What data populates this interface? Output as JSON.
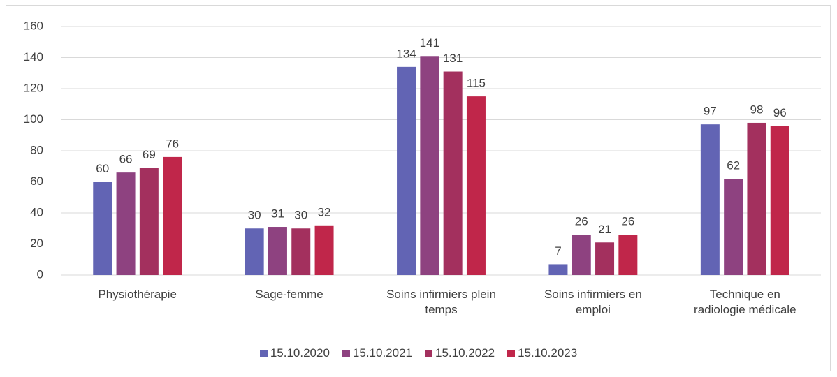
{
  "chart_data": {
    "type": "bar",
    "categories": [
      "Physiothérapie",
      "Sage-femme",
      "Soins infirmiers plein temps",
      "Soins infirmiers en emploi",
      "Technique en radiologie médicale"
    ],
    "series": [
      {
        "name": "15.10.2020",
        "color": "#6264b4",
        "values": [
          60,
          30,
          134,
          7,
          97
        ]
      },
      {
        "name": "15.10.2021",
        "color": "#8e4280",
        "values": [
          66,
          31,
          141,
          26,
          62
        ]
      },
      {
        "name": "15.10.2022",
        "color": "#a3305e",
        "values": [
          69,
          30,
          131,
          21,
          98
        ]
      },
      {
        "name": "15.10.2023",
        "color": "#c0264a",
        "values": [
          76,
          32,
          115,
          26,
          96
        ]
      }
    ],
    "ylim": [
      0,
      160
    ],
    "yticks": [
      0,
      20,
      40,
      60,
      80,
      100,
      120,
      140,
      160
    ],
    "grid": true,
    "legend": "bottom"
  }
}
